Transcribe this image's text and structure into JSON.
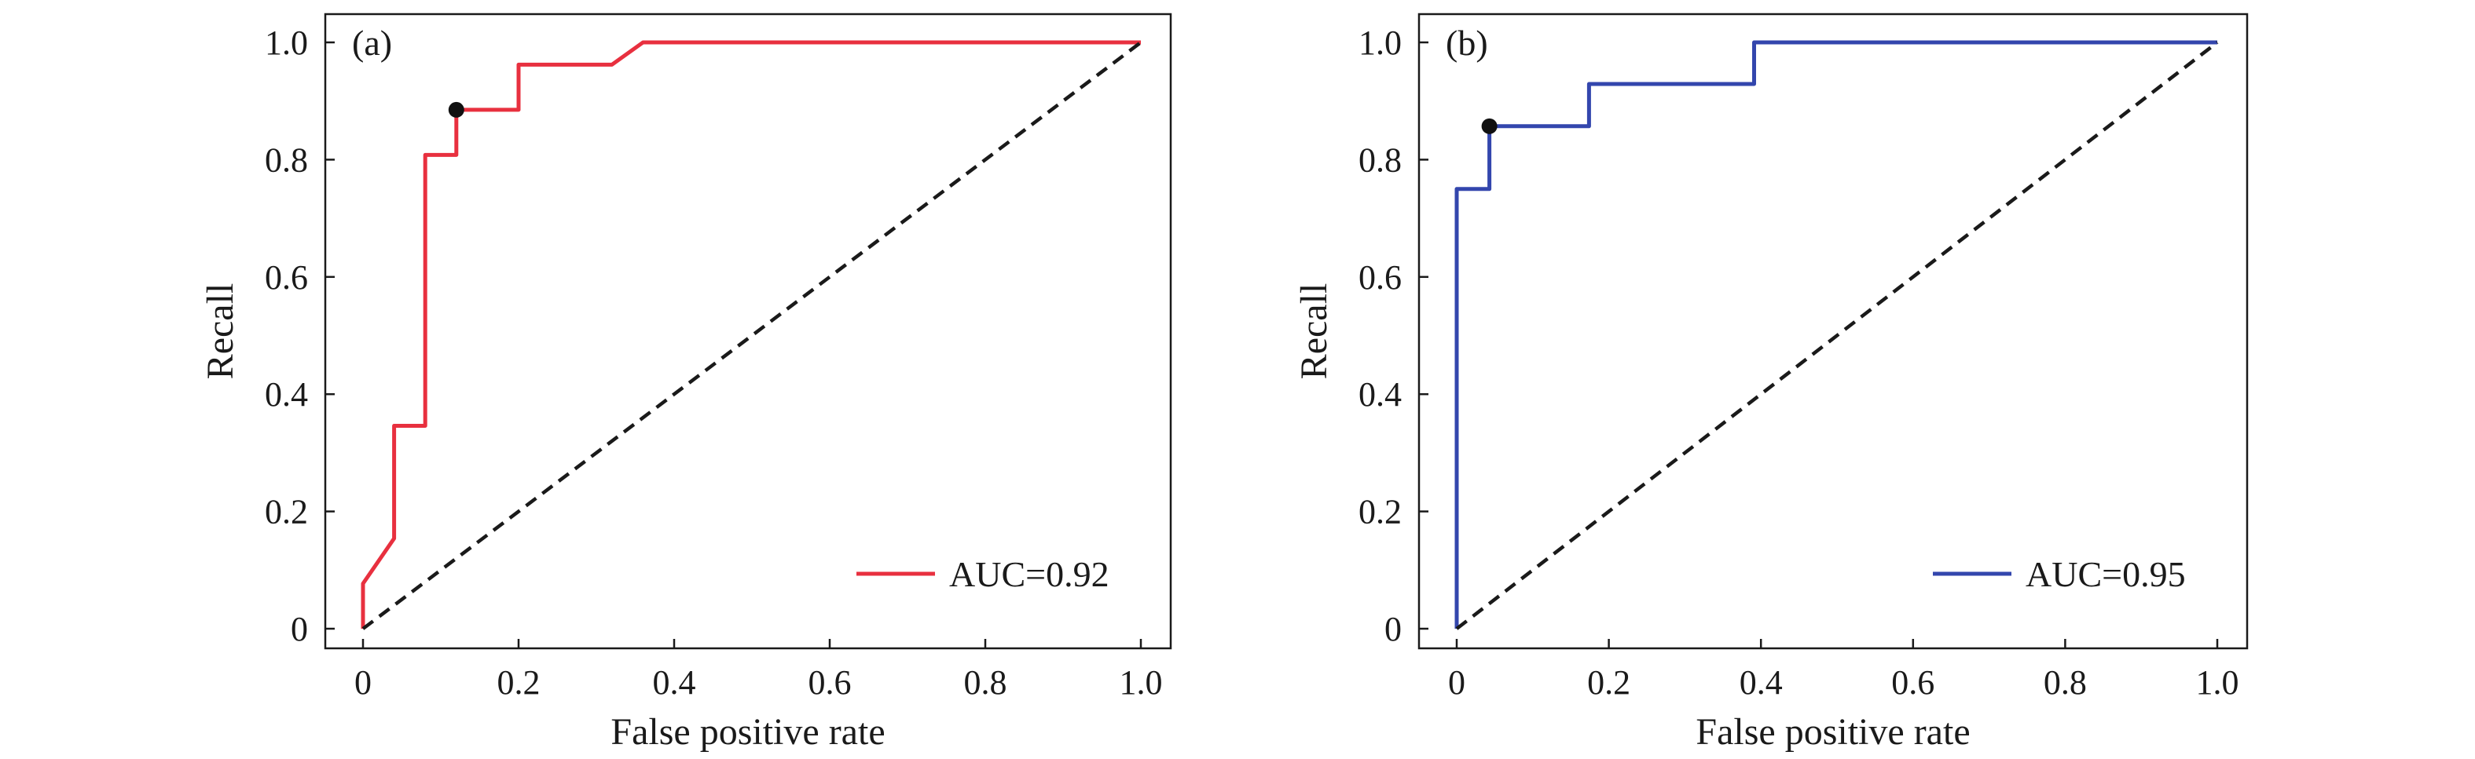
{
  "colors": {
    "curve_a": "#e8303f",
    "curve_b": "#3346ad",
    "diagonal": "#1a1a1a",
    "marker": "#111111",
    "axes": "#1a1a1a"
  },
  "chart_data": [
    {
      "type": "line",
      "panel_label": "(a)",
      "xlabel": "False positive rate",
      "ylabel": "Recall",
      "xlim": [
        0,
        1
      ],
      "ylim": [
        0,
        1
      ],
      "xticks": [
        "0",
        "0.2",
        "0.4",
        "0.6",
        "0.8",
        "1.0"
      ],
      "yticks": [
        "0",
        "0.2",
        "0.4",
        "0.6",
        "0.8",
        "1.0"
      ],
      "grid": false,
      "legend_position": "bottom-right",
      "series": [
        {
          "name": "AUC=0.92",
          "x": [
            0,
            0,
            0.04,
            0.04,
            0.08,
            0.08,
            0.12,
            0.12,
            0.2,
            0.2,
            0.32,
            0.36,
            1.0
          ],
          "y": [
            0,
            0.077,
            0.154,
            0.346,
            0.346,
            0.808,
            0.808,
            0.885,
            0.885,
            0.962,
            0.962,
            1.0,
            1.0
          ]
        },
        {
          "name": "",
          "style": "dashed",
          "x": [
            0,
            1
          ],
          "y": [
            0,
            1
          ]
        }
      ],
      "highlight_point": {
        "x": 0.12,
        "y": 0.885
      }
    },
    {
      "type": "line",
      "panel_label": "(b)",
      "xlabel": "False positive rate",
      "ylabel": "Recall",
      "xlim": [
        0,
        1
      ],
      "ylim": [
        0,
        1
      ],
      "xticks": [
        "0",
        "0.2",
        "0.4",
        "0.6",
        "0.8",
        "1.0"
      ],
      "yticks": [
        "0",
        "0.2",
        "0.4",
        "0.6",
        "0.8",
        "1.0"
      ],
      "grid": false,
      "legend_position": "bottom-right",
      "series": [
        {
          "name": "AUC=0.95",
          "x": [
            0,
            0,
            0.043,
            0.043,
            0.174,
            0.174,
            0.391,
            0.391,
            1.0
          ],
          "y": [
            0,
            0.75,
            0.75,
            0.857,
            0.857,
            0.929,
            0.929,
            1.0,
            1.0
          ]
        },
        {
          "name": "",
          "style": "dashed",
          "x": [
            0,
            1
          ],
          "y": [
            0,
            1
          ]
        }
      ],
      "highlight_point": {
        "x": 0.043,
        "y": 0.857
      }
    }
  ]
}
